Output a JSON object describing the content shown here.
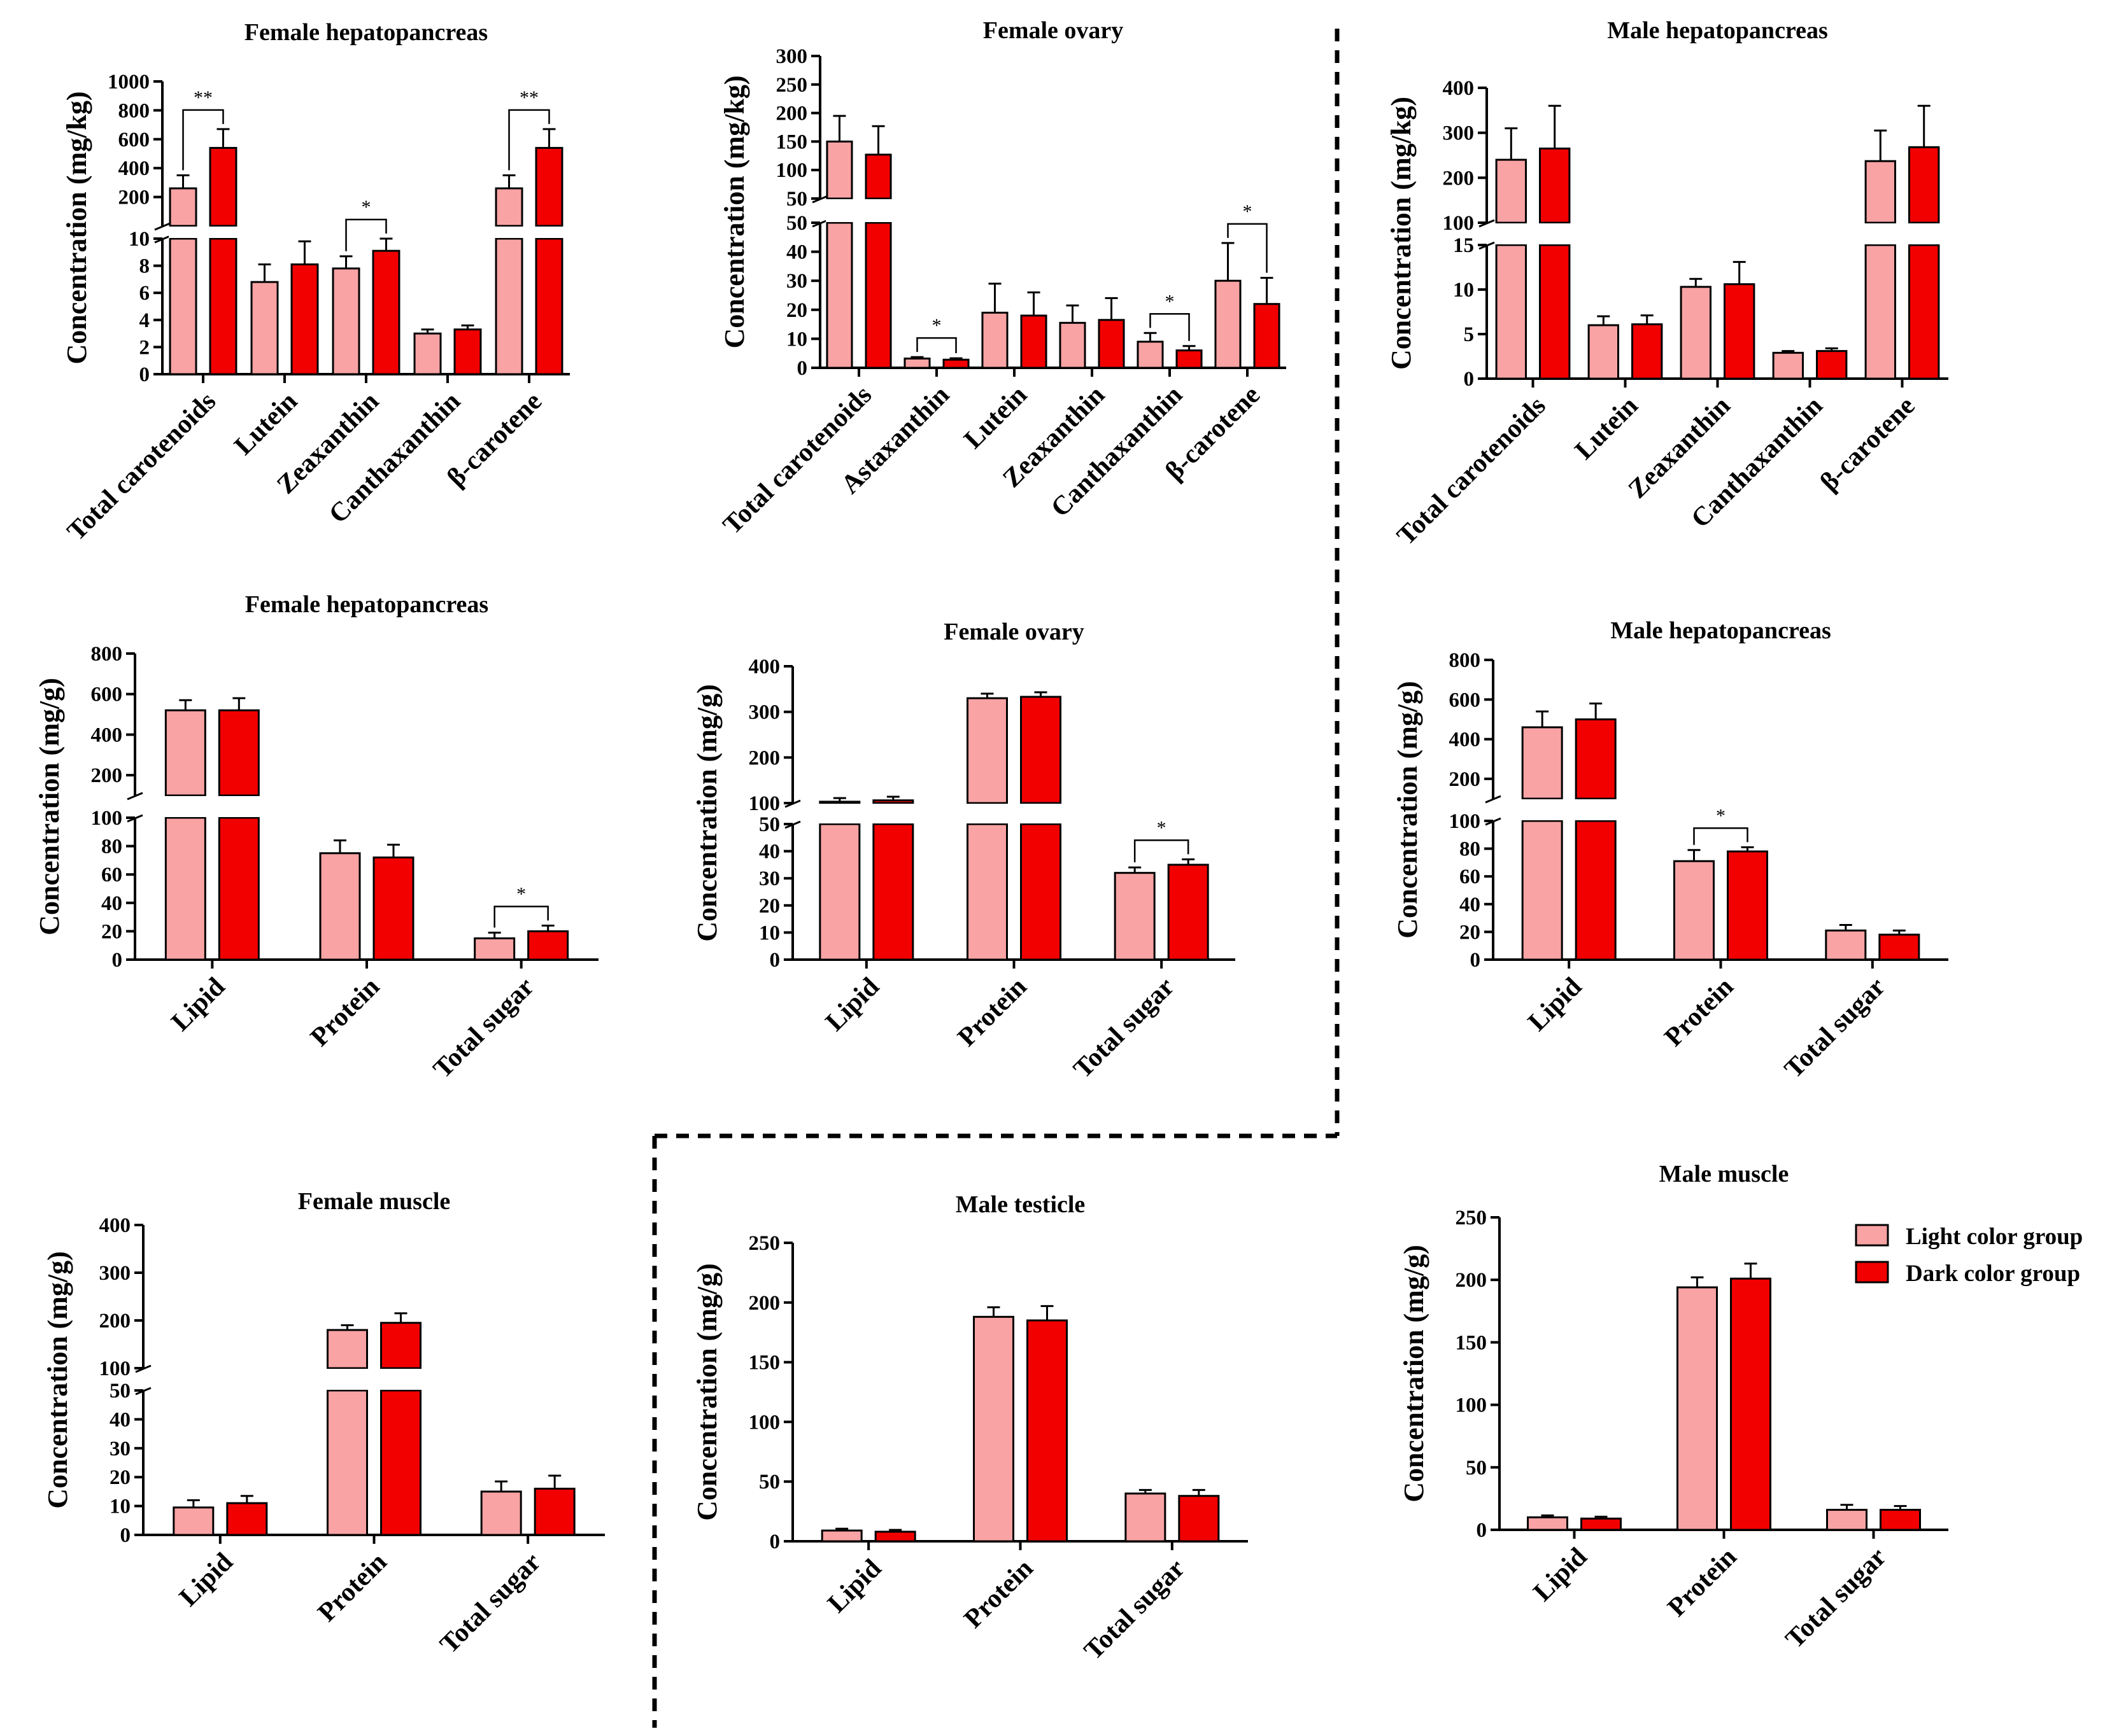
{
  "colors": {
    "light": "#f9a3a4",
    "dark": "#f20000",
    "axis": "#000000"
  },
  "legend": [
    {
      "label": "Light color group",
      "color": "#f9a3a4"
    },
    {
      "label": "Dark color group",
      "color": "#f20000"
    }
  ],
  "chart_data": [
    {
      "id": "c1",
      "type": "bar",
      "title": "Female hepatopancreas",
      "ylabel": "Concentration (mg/kg)",
      "categories": [
        "Total carotenoids",
        "Lutein",
        "Zeaxanthin",
        "Canthaxanthin",
        "β-carotene"
      ],
      "series": [
        {
          "name": "Light color group",
          "values": [
            260,
            6.8,
            7.8,
            3.0,
            260
          ],
          "errors": [
            90,
            1.3,
            0.9,
            0.3,
            90
          ]
        },
        {
          "name": "Dark color group",
          "values": [
            540,
            8.1,
            9.1,
            3.3,
            540
          ],
          "errors": [
            130,
            1.7,
            0.9,
            0.3,
            130
          ]
        }
      ],
      "segments": [
        {
          "range": [
            0,
            10
          ],
          "ticks": [
            "0",
            "2",
            "4",
            "6",
            "8",
            "10"
          ]
        },
        {
          "range": [
            0,
            1000
          ],
          "ticks": [
            "200",
            "400",
            "600",
            "800",
            "1000"
          ]
        }
      ],
      "significance": [
        {
          "category": 0,
          "label": "**"
        },
        {
          "category": 2,
          "label": "*"
        },
        {
          "category": 4,
          "label": "**"
        }
      ]
    },
    {
      "id": "c2",
      "type": "bar",
      "title": "Female ovary",
      "ylabel": "Concentration (mg/kg)",
      "categories": [
        "Total carotenoids",
        "Astaxanthin",
        "Lutein",
        "Zeaxanthin",
        "Canthaxanthin",
        "β-carotene"
      ],
      "series": [
        {
          "name": "Light color group",
          "values": [
            150,
            3.2,
            19,
            15.5,
            9,
            30
          ],
          "errors": [
            45,
            0.5,
            10,
            6,
            3,
            13
          ]
        },
        {
          "name": "Dark color group",
          "values": [
            127,
            2.8,
            18,
            16.5,
            6,
            22
          ],
          "errors": [
            50,
            0.5,
            8,
            7.5,
            1.5,
            9
          ]
        }
      ],
      "segments": [
        {
          "range": [
            0,
            50
          ],
          "ticks": [
            "0",
            "10",
            "20",
            "30",
            "40",
            "50"
          ]
        },
        {
          "range": [
            50,
            300
          ],
          "ticks": [
            "50",
            "100",
            "150",
            "200",
            "250",
            "300"
          ]
        }
      ],
      "significance": [
        {
          "category": 1,
          "label": "*"
        },
        {
          "category": 4,
          "label": "*"
        },
        {
          "category": 5,
          "label": "*"
        }
      ]
    },
    {
      "id": "c3",
      "type": "bar",
      "title": "Male hepatopancreas",
      "ylabel": "Concentration (mg/kg)",
      "categories": [
        "Total carotenoids",
        "Lutein",
        "Zeaxanthin",
        "Canthaxanthin",
        "β-carotene"
      ],
      "series": [
        {
          "name": "Light color group",
          "values": [
            240,
            6.0,
            10.3,
            2.9,
            237
          ],
          "errors": [
            70,
            1.0,
            0.9,
            0.2,
            68
          ]
        },
        {
          "name": "Dark color group",
          "values": [
            265,
            6.1,
            10.6,
            3.1,
            268
          ],
          "errors": [
            95,
            1.0,
            2.5,
            0.3,
            92
          ]
        }
      ],
      "segments": [
        {
          "range": [
            0,
            15
          ],
          "ticks": [
            "0",
            "5",
            "10",
            "15"
          ]
        },
        {
          "range": [
            100,
            400
          ],
          "ticks": [
            "100",
            "200",
            "300",
            "400"
          ]
        }
      ],
      "significance": []
    },
    {
      "id": "c4",
      "type": "bar",
      "title": "Female hepatopancreas",
      "ylabel": "Concentration (mg/g)",
      "categories": [
        "Lipid",
        "Protein",
        "Total sugar"
      ],
      "series": [
        {
          "name": "Light color group",
          "values": [
            520,
            75,
            15
          ],
          "errors": [
            50,
            9,
            4
          ]
        },
        {
          "name": "Dark color group",
          "values": [
            520,
            72,
            20
          ],
          "errors": [
            60,
            9,
            4
          ]
        }
      ],
      "segments": [
        {
          "range": [
            0,
            100
          ],
          "ticks": [
            "0",
            "20",
            "40",
            "60",
            "80",
            "100"
          ]
        },
        {
          "range": [
            100,
            800
          ],
          "ticks": [
            "200",
            "400",
            "600",
            "800"
          ]
        }
      ],
      "significance": [
        {
          "category": 2,
          "label": "*"
        }
      ]
    },
    {
      "id": "c5",
      "type": "bar",
      "title": "Female ovary",
      "ylabel": "Concentration (mg/g)",
      "categories": [
        "Lipid",
        "Protein",
        "Total sugar"
      ],
      "series": [
        {
          "name": "Light color group",
          "values": [
            103,
            330,
            32
          ],
          "errors": [
            8,
            10,
            2
          ]
        },
        {
          "name": "Dark color group",
          "values": [
            106,
            333,
            35
          ],
          "errors": [
            8,
            10,
            2
          ]
        }
      ],
      "segments": [
        {
          "range": [
            0,
            50
          ],
          "ticks": [
            "0",
            "10",
            "20",
            "30",
            "40",
            "50"
          ]
        },
        {
          "range": [
            100,
            400
          ],
          "ticks": [
            "100",
            "200",
            "300",
            "400"
          ]
        }
      ],
      "significance": [
        {
          "category": 2,
          "label": "*"
        }
      ]
    },
    {
      "id": "c6",
      "type": "bar",
      "title": "Male hepatopancreas",
      "ylabel": "Concentration (mg/g)",
      "categories": [
        "Lipid",
        "Protein",
        "Total sugar"
      ],
      "series": [
        {
          "name": "Light color group",
          "values": [
            460,
            71,
            21
          ],
          "errors": [
            80,
            8,
            4
          ]
        },
        {
          "name": "Dark color group",
          "values": [
            500,
            78,
            18
          ],
          "errors": [
            80,
            3,
            3
          ]
        }
      ],
      "segments": [
        {
          "range": [
            0,
            100
          ],
          "ticks": [
            "0",
            "20",
            "40",
            "60",
            "80",
            "100"
          ]
        },
        {
          "range": [
            100,
            800
          ],
          "ticks": [
            "200",
            "400",
            "600",
            "800"
          ]
        }
      ],
      "significance": [
        {
          "category": 1,
          "label": "*"
        }
      ]
    },
    {
      "id": "c7",
      "type": "bar",
      "title": "Female muscle",
      "ylabel": "Concentration (mg/g)",
      "categories": [
        "Lipid",
        "Protein",
        "Total sugar"
      ],
      "series": [
        {
          "name": "Light color group",
          "values": [
            9.5,
            180,
            15
          ],
          "errors": [
            2.5,
            10,
            3.5
          ]
        },
        {
          "name": "Dark color group",
          "values": [
            11,
            195,
            16
          ],
          "errors": [
            2.5,
            20,
            4.5
          ]
        }
      ],
      "segments": [
        {
          "range": [
            0,
            50
          ],
          "ticks": [
            "0",
            "10",
            "20",
            "30",
            "40",
            "50"
          ]
        },
        {
          "range": [
            100,
            400
          ],
          "ticks": [
            "100",
            "200",
            "300",
            "400"
          ]
        }
      ],
      "significance": []
    },
    {
      "id": "c8",
      "type": "bar",
      "title": "Male testicle",
      "ylabel": "Concentration (mg/g)",
      "categories": [
        "Lipid",
        "Protein",
        "Total sugar"
      ],
      "series": [
        {
          "name": "Light color group",
          "values": [
            9,
            188,
            40
          ],
          "errors": [
            1.5,
            8,
            3
          ]
        },
        {
          "name": "Dark color group",
          "values": [
            8,
            185,
            38
          ],
          "errors": [
            1.5,
            12,
            5
          ]
        }
      ],
      "segments": [
        {
          "range": [
            0,
            250
          ],
          "ticks": [
            "0",
            "50",
            "100",
            "150",
            "200",
            "250"
          ]
        }
      ],
      "significance": []
    },
    {
      "id": "c9",
      "type": "bar",
      "title": "Male muscle",
      "ylabel": "Concentration (mg/g)",
      "categories": [
        "Lipid",
        "Protein",
        "Total sugar"
      ],
      "series": [
        {
          "name": "Light color group",
          "values": [
            10,
            194,
            16
          ],
          "errors": [
            1.5,
            8,
            4
          ]
        },
        {
          "name": "Dark color group",
          "values": [
            9,
            201,
            16
          ],
          "errors": [
            1.5,
            12,
            3
          ]
        }
      ],
      "segments": [
        {
          "range": [
            0,
            250
          ],
          "ticks": [
            "0",
            "50",
            "100",
            "150",
            "200",
            "250"
          ]
        }
      ],
      "significance": []
    }
  ]
}
